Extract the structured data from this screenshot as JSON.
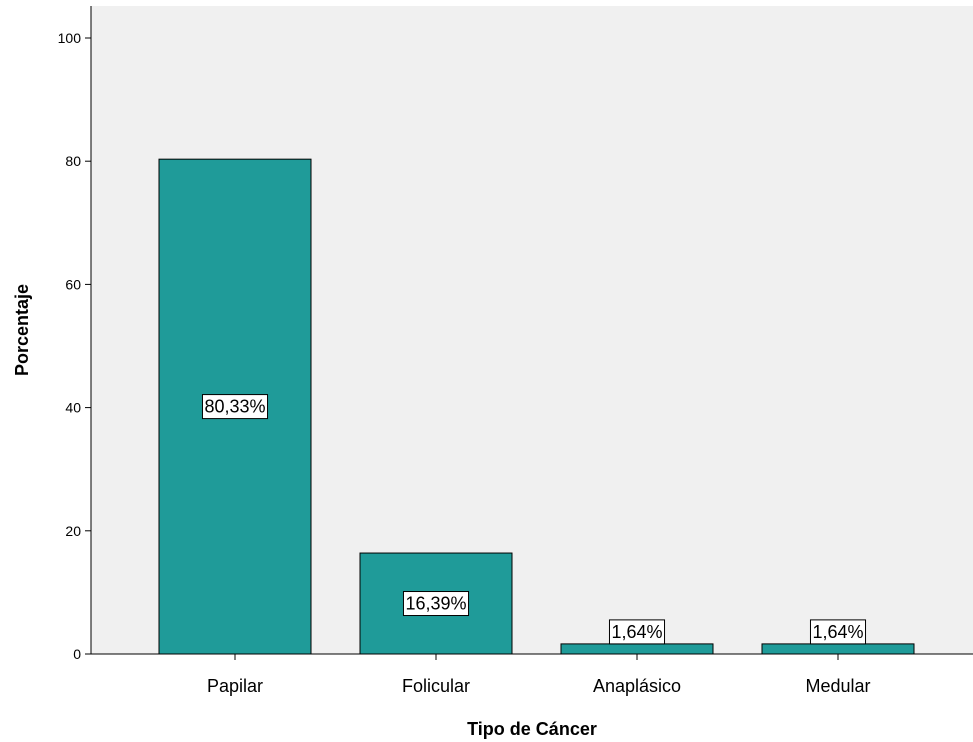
{
  "colors": {
    "plot_background": "#f0f0f0",
    "bar_fill": "#1f9b99",
    "bar_stroke": "#000000",
    "label_box": "#ffffff"
  },
  "chart_data": {
    "type": "bar",
    "categories": [
      "Papilar",
      "Folicular",
      "Anaplásico",
      "Medular"
    ],
    "values": [
      80.33,
      16.39,
      1.64,
      1.64
    ],
    "data_labels": [
      "80,33%",
      "16,39%",
      "1,64%",
      "1,64%"
    ],
    "title": "",
    "xlabel": "Tipo de Cáncer",
    "ylabel": "Porcentaje",
    "ylim": [
      0,
      100
    ],
    "yticks": [
      0,
      20,
      40,
      60,
      80,
      100
    ],
    "grid": false,
    "legend": "none"
  }
}
